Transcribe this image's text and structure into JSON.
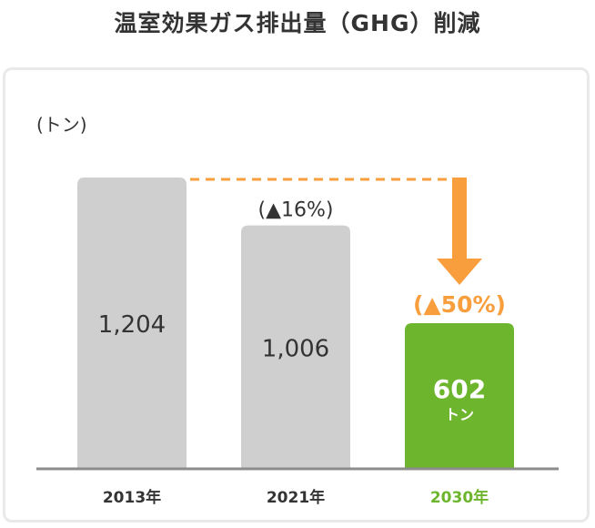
{
  "title": "温室効果ガス排出量（GHG）削減",
  "unit_label": "(トン)",
  "colors": {
    "bar_gray": "#cfcfcf",
    "bar_green": "#6cb52d",
    "accent_orange": "#f89e3d",
    "axis": "#8c8c8c"
  },
  "chart_data": {
    "type": "bar",
    "title": "温室効果ガス排出量（GHG）削減",
    "ylabel": "(トン)",
    "xlabel": "",
    "categories": [
      "2013年",
      "2021年",
      "2030年"
    ],
    "values": [
      1204,
      1006,
      602
    ],
    "value_labels": [
      "1,204",
      "1,006",
      "602"
    ],
    "value_unit_on_target": "トン",
    "reduction_labels": [
      null,
      "(▲16%)",
      "(▲50%)"
    ],
    "highlight_category": "2030年",
    "ylim": [
      0,
      1204
    ],
    "grid": false,
    "legend": "none",
    "annotation": "dashed line and arrow from 2013 level down to 2030 bar"
  }
}
